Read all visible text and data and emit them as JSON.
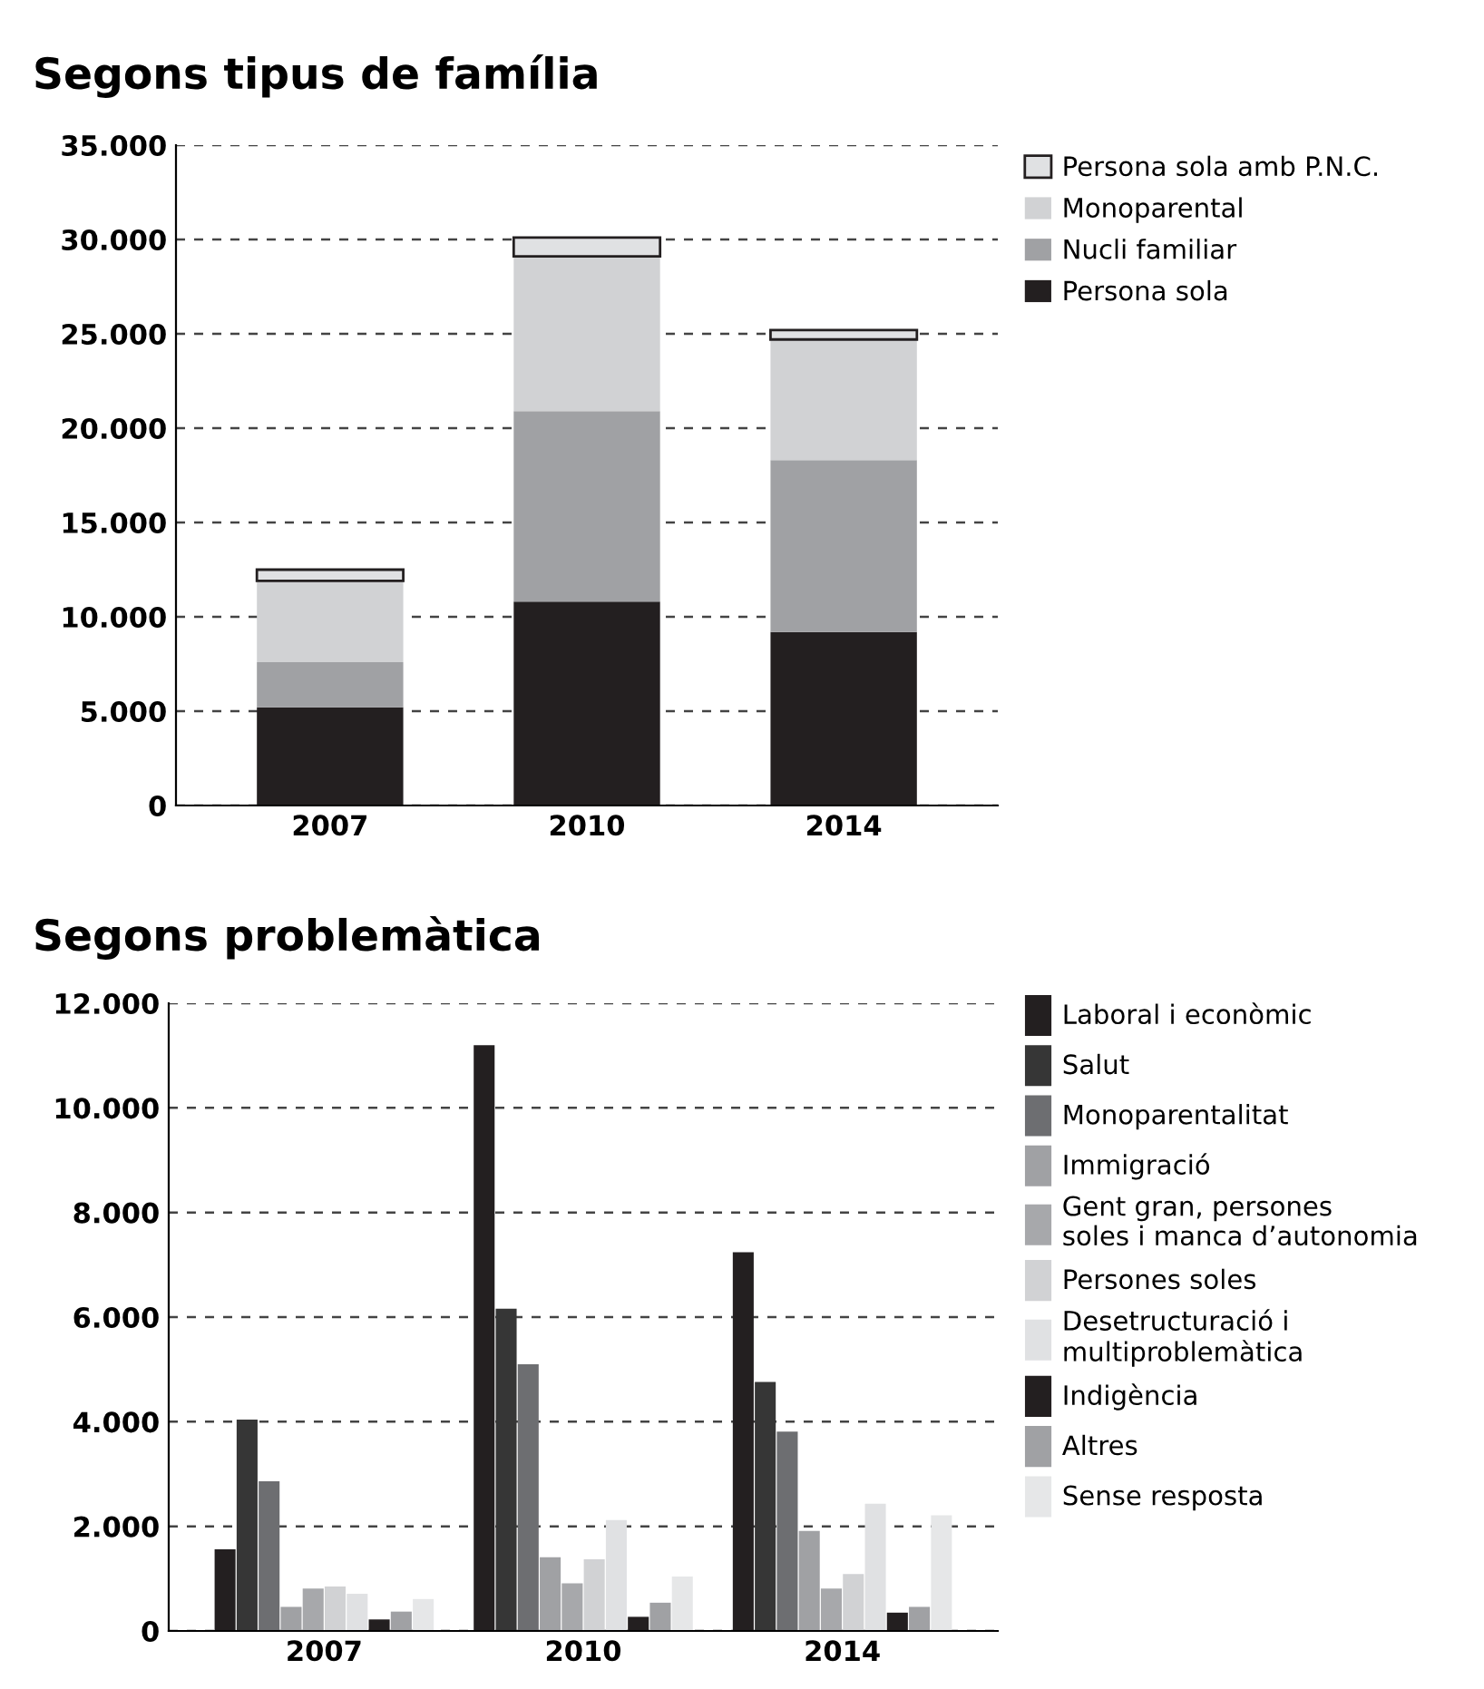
{
  "chart_data": [
    {
      "type": "bar",
      "title": "Segons tipus de família",
      "categories": [
        "2007",
        "2010",
        "2014"
      ],
      "stacked": true,
      "grid": "y",
      "legend": "top right",
      "ylim": [
        0,
        35000
      ],
      "yticks": [
        {
          "value": 0,
          "label": "0"
        },
        {
          "value": 5000,
          "label": "5.000"
        },
        {
          "value": 10000,
          "label": "10.000"
        },
        {
          "value": 15000,
          "label": "15.000"
        },
        {
          "value": 20000,
          "label": "20.000"
        },
        {
          "value": 25000,
          "label": "25.000"
        },
        {
          "value": 30000,
          "label": "30.000"
        },
        {
          "value": 35000,
          "label": "35.000"
        }
      ],
      "series": [
        {
          "name": "Persona sola",
          "color": "#231f20",
          "values": [
            5200,
            10800,
            9200
          ]
        },
        {
          "name": "Nucli familiar",
          "color": "#a0a1a4",
          "values": [
            2400,
            10100,
            9100
          ]
        },
        {
          "name": "Monoparental",
          "color": "#d1d2d4",
          "values": [
            4300,
            8200,
            6400
          ]
        },
        {
          "name": "Persona sola amb P.N.C.",
          "color": "#e0e1e3",
          "values": [
            600,
            1000,
            500
          ]
        }
      ]
    },
    {
      "type": "bar",
      "title": "Segons problemàtica",
      "categories": [
        "2007",
        "2010",
        "2014"
      ],
      "grid": "y",
      "legend": "right",
      "ylim": [
        0,
        12000
      ],
      "yticks": [
        {
          "value": 0,
          "label": "0"
        },
        {
          "value": 2000,
          "label": "2.000"
        },
        {
          "value": 4000,
          "label": "4.000"
        },
        {
          "value": 6000,
          "label": "6.000"
        },
        {
          "value": 8000,
          "label": "8.000"
        },
        {
          "value": 10000,
          "label": "10.000"
        },
        {
          "value": 12000,
          "label": "12.000"
        }
      ],
      "series": [
        {
          "name": "Laboral i econòmic",
          "color": "#231f20",
          "values": [
            1560,
            11200,
            7240
          ]
        },
        {
          "name": "Salut",
          "color": "#363636",
          "values": [
            4040,
            6160,
            4760
          ]
        },
        {
          "name": "Monoparentalitat",
          "color": "#6d6e71",
          "values": [
            2860,
            5100,
            3810
          ]
        },
        {
          "name": "Immigració",
          "color": "#a0a1a4",
          "values": [
            460,
            1410,
            1910
          ]
        },
        {
          "name": "Gent gran, persones\nsoles i manca d’autonomia",
          "color": "#a7a8ab",
          "values": [
            810,
            910,
            810
          ]
        },
        {
          "name": "Persones soles",
          "color": "#d1d2d4",
          "values": [
            850,
            1370,
            1090
          ]
        },
        {
          "name": "Desetructuració i\nmultiproblemàtica",
          "color": "#e0e1e3",
          "values": [
            710,
            2120,
            2430
          ]
        },
        {
          "name": "Indigència",
          "color": "#231f20",
          "values": [
            220,
            270,
            350
          ]
        },
        {
          "name": "Altres",
          "color": "#a0a1a4",
          "values": [
            370,
            540,
            460
          ]
        },
        {
          "name": "Sense resposta",
          "color": "#e6e7e8",
          "values": [
            610,
            1040,
            2210
          ]
        }
      ]
    }
  ]
}
